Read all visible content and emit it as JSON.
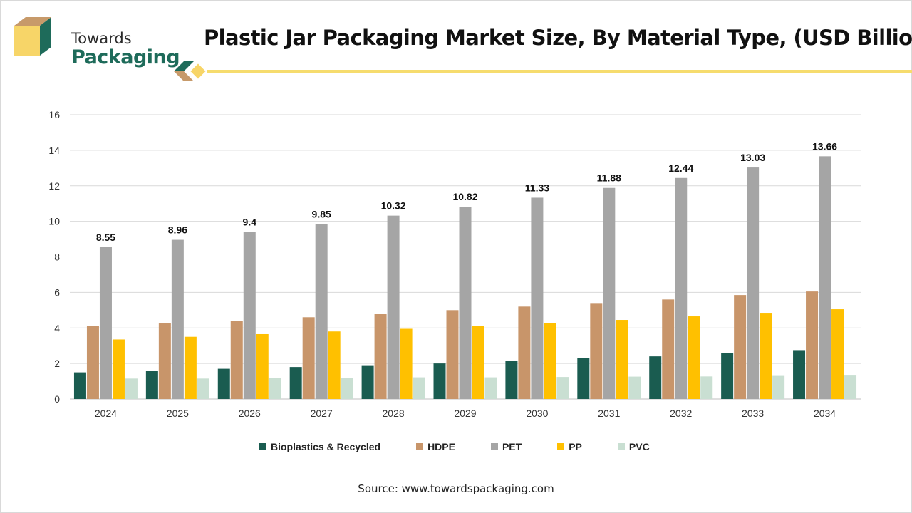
{
  "brand": {
    "line1": "Towards",
    "line2": "Packaging",
    "colors": {
      "green": "#1e6b5a",
      "tan": "#c79a6a",
      "yellow": "#f7d568"
    }
  },
  "header": {
    "title": "Plastic Jar Packaging Market Size, By Material Type, (USD Billion)",
    "accent_color": "#f6dc6e"
  },
  "chart_data": {
    "type": "bar",
    "title": "Plastic Jar Packaging Market Size, By Material Type, (USD Billion)",
    "xlabel": "",
    "ylabel": "",
    "ylim": [
      0,
      16
    ],
    "yticks": [
      0,
      2,
      4,
      6,
      8,
      10,
      12,
      14,
      16
    ],
    "grid": true,
    "legend_position": "bottom",
    "categories": [
      "2024",
      "2025",
      "2026",
      "2027",
      "2028",
      "2029",
      "2030",
      "2031",
      "2032",
      "2033",
      "2034"
    ],
    "series": [
      {
        "name": "Bioplastics & Recycled",
        "color": "#1a5c50",
        "values": [
          1.5,
          1.6,
          1.7,
          1.8,
          1.9,
          2.0,
          2.15,
          2.3,
          2.4,
          2.6,
          2.75
        ]
      },
      {
        "name": "HDPE",
        "color": "#c8956a",
        "values": [
          4.1,
          4.25,
          4.4,
          4.6,
          4.8,
          5.0,
          5.2,
          5.4,
          5.6,
          5.85,
          6.05
        ]
      },
      {
        "name": "PET",
        "color": "#a5a5a5",
        "values": [
          8.55,
          8.96,
          9.4,
          9.85,
          10.32,
          10.82,
          11.33,
          11.88,
          12.44,
          13.03,
          13.66
        ],
        "labels": [
          "8.55",
          "8.96",
          "9.4",
          "9.85",
          "10.32",
          "10.82",
          "11.33",
          "11.88",
          "12.44",
          "13.03",
          "13.66"
        ]
      },
      {
        "name": "PP",
        "color": "#ffc000",
        "values": [
          3.35,
          3.5,
          3.65,
          3.8,
          3.95,
          4.1,
          4.28,
          4.45,
          4.65,
          4.85,
          5.05
        ]
      },
      {
        "name": "PVC",
        "color": "#c9dfd2",
        "values": [
          1.15,
          1.15,
          1.18,
          1.18,
          1.22,
          1.22,
          1.24,
          1.26,
          1.27,
          1.3,
          1.32
        ]
      }
    ]
  },
  "footer": {
    "source": "Source: www.towardspackaging.com"
  }
}
